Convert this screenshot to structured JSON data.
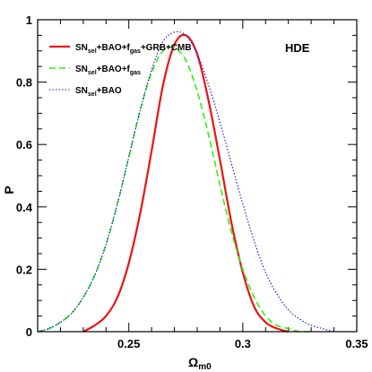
{
  "chart_data": {
    "type": "line",
    "xlabel": "Ω",
    "xlabel_sub": "m0",
    "ylabel": "P",
    "xlim": [
      0.21,
      0.35
    ],
    "ylim": [
      0,
      1
    ],
    "x_ticks": [
      0.25,
      0.3,
      0.35
    ],
    "x_tick_labels": [
      "0.25",
      "0.3",
      "0.35"
    ],
    "y_ticks": [
      0,
      0.2,
      0.4,
      0.6,
      0.8,
      1
    ],
    "y_tick_labels": [
      "0",
      "0.2",
      "0.4",
      "0.6",
      "0.8",
      "1"
    ],
    "annotation": "HDE",
    "legend_position": "top-left",
    "grid": false,
    "series": [
      {
        "name": "SN_sel+BAO+f_gas+GRB+CMB",
        "name_parts": [
          [
            "SN",
            ""
          ],
          [
            "sel",
            "sub"
          ],
          [
            "+BAO+f",
            ""
          ],
          [
            "gas",
            "sub"
          ],
          [
            "+GRB+CMB",
            ""
          ]
        ],
        "color": "#ee1111",
        "style": "solid",
        "x": [
          0.23,
          0.235,
          0.24,
          0.245,
          0.25,
          0.255,
          0.26,
          0.265,
          0.27,
          0.275,
          0.28,
          0.285,
          0.29,
          0.295,
          0.3,
          0.305,
          0.31,
          0.315,
          0.32
        ],
        "y": [
          0.0,
          0.02,
          0.05,
          0.11,
          0.22,
          0.38,
          0.58,
          0.79,
          0.92,
          0.95,
          0.89,
          0.74,
          0.55,
          0.35,
          0.19,
          0.08,
          0.03,
          0.01,
          0.0
        ]
      },
      {
        "name": "SN_sel+BAO+f_gas",
        "name_parts": [
          [
            "SN",
            ""
          ],
          [
            "sel",
            "sub"
          ],
          [
            "+BAO+f",
            ""
          ],
          [
            "gas",
            "sub"
          ]
        ],
        "color": "#33ee11",
        "style": "dashed",
        "x": [
          0.21,
          0.215,
          0.22,
          0.225,
          0.23,
          0.235,
          0.24,
          0.245,
          0.25,
          0.255,
          0.26,
          0.265,
          0.27,
          0.275,
          0.28,
          0.285,
          0.29,
          0.295,
          0.3,
          0.305,
          0.31,
          0.315,
          0.32,
          0.325,
          0.33
        ],
        "y": [
          0.0,
          0.01,
          0.03,
          0.06,
          0.11,
          0.18,
          0.28,
          0.41,
          0.56,
          0.71,
          0.83,
          0.9,
          0.91,
          0.87,
          0.77,
          0.63,
          0.47,
          0.32,
          0.2,
          0.11,
          0.05,
          0.02,
          0.01,
          0.0,
          0.0
        ]
      },
      {
        "name": "SN_sel+BAO",
        "name_parts": [
          [
            "SN",
            ""
          ],
          [
            "sel",
            "sub"
          ],
          [
            "+BAO",
            ""
          ]
        ],
        "color": "#1111cc",
        "style": "dotted",
        "x": [
          0.21,
          0.215,
          0.22,
          0.225,
          0.23,
          0.235,
          0.24,
          0.245,
          0.25,
          0.255,
          0.26,
          0.265,
          0.27,
          0.275,
          0.28,
          0.285,
          0.29,
          0.295,
          0.3,
          0.305,
          0.31,
          0.315,
          0.32,
          0.325,
          0.33,
          0.335,
          0.34,
          0.345,
          0.35
        ],
        "y": [
          0.0,
          0.01,
          0.03,
          0.06,
          0.11,
          0.18,
          0.28,
          0.41,
          0.56,
          0.71,
          0.84,
          0.93,
          0.96,
          0.95,
          0.89,
          0.79,
          0.67,
          0.54,
          0.41,
          0.29,
          0.19,
          0.12,
          0.07,
          0.04,
          0.02,
          0.01,
          0.0,
          0.0,
          0.0
        ]
      }
    ]
  }
}
